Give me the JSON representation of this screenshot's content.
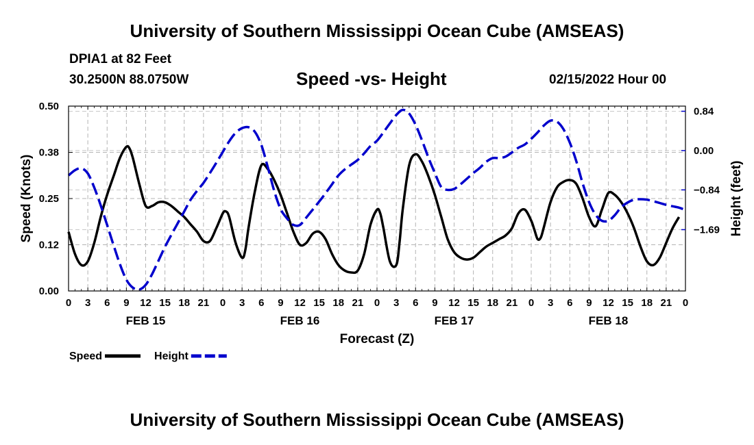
{
  "header": {
    "title": "University of Southern Mississippi Ocean Cube (AMSEAS)",
    "station": "DPIA1 at 82 Feet",
    "coords": "30.2500N  88.0750W",
    "subtitle": "Speed -vs- Height",
    "datetime": "02/15/2022 Hour 00"
  },
  "footer": {
    "title": "University of Southern Mississippi Ocean Cube (AMSEAS)"
  },
  "chart_data": {
    "type": "line",
    "title": "Speed -vs- Height",
    "xlabel": "Forecast (Z)",
    "ylabel": "Speed (Knots)",
    "y2label": "Height (feet)",
    "x_range": [
      0,
      96
    ],
    "ylim": [
      0,
      0.5
    ],
    "y2lim": [
      -3.0,
      0.95
    ],
    "grid": true,
    "x_ticks": [
      0,
      3,
      6,
      9,
      12,
      15,
      18,
      21,
      24,
      27,
      30,
      33,
      36,
      39,
      42,
      45,
      48,
      51,
      54,
      57,
      60,
      63,
      66,
      69,
      72,
      75,
      78,
      81,
      84,
      87,
      90,
      93,
      96
    ],
    "x_tick_labels": [
      "0",
      "3",
      "6",
      "9",
      "12",
      "15",
      "18",
      "21",
      "0",
      "3",
      "6",
      "9",
      "12",
      "15",
      "18",
      "21",
      "0",
      "3",
      "6",
      "9",
      "12",
      "15",
      "18",
      "21",
      "0",
      "3",
      "6",
      "9",
      "12",
      "15",
      "18",
      "21",
      "0"
    ],
    "date_labels": [
      {
        "x": 12,
        "label": "FEB 15"
      },
      {
        "x": 36,
        "label": "FEB 16"
      },
      {
        "x": 60,
        "label": "FEB 17"
      },
      {
        "x": 84,
        "label": "FEB 18"
      }
    ],
    "y_ticks": [
      0,
      0.125,
      0.25,
      0.375,
      0.5
    ],
    "y_tick_labels": [
      "0.00",
      "0.12",
      "0.25",
      "0.38",
      "0.50"
    ],
    "y2_ticks": [
      0.84,
      0.0,
      -0.84,
      -1.69
    ],
    "y2_tick_labels": [
      "0.84",
      "0.00",
      "−0.84",
      "−1.69"
    ],
    "series": [
      {
        "name": "Speed",
        "axis": "left",
        "color": "#000000",
        "dash": "solid",
        "points": [
          [
            0,
            0.16
          ],
          [
            1,
            0.1
          ],
          [
            2,
            0.07
          ],
          [
            3,
            0.08
          ],
          [
            4,
            0.13
          ],
          [
            5,
            0.2
          ],
          [
            6,
            0.26
          ],
          [
            7,
            0.31
          ],
          [
            8,
            0.36
          ],
          [
            9,
            0.39
          ],
          [
            9.5,
            0.385
          ],
          [
            10,
            0.36
          ],
          [
            11,
            0.29
          ],
          [
            12,
            0.23
          ],
          [
            13,
            0.23
          ],
          [
            14,
            0.24
          ],
          [
            15,
            0.24
          ],
          [
            16,
            0.23
          ],
          [
            17,
            0.215
          ],
          [
            18,
            0.2
          ],
          [
            19,
            0.18
          ],
          [
            20,
            0.16
          ],
          [
            21,
            0.135
          ],
          [
            22,
            0.135
          ],
          [
            23,
            0.17
          ],
          [
            24,
            0.21
          ],
          [
            24.5,
            0.215
          ],
          [
            25,
            0.2
          ],
          [
            26,
            0.13
          ],
          [
            27,
            0.09
          ],
          [
            27.5,
            0.11
          ],
          [
            28,
            0.17
          ],
          [
            29,
            0.27
          ],
          [
            30,
            0.34
          ],
          [
            31,
            0.33
          ],
          [
            32,
            0.3
          ],
          [
            33,
            0.26
          ],
          [
            34,
            0.21
          ],
          [
            35,
            0.16
          ],
          [
            36,
            0.125
          ],
          [
            37,
            0.13
          ],
          [
            38,
            0.155
          ],
          [
            39,
            0.16
          ],
          [
            40,
            0.14
          ],
          [
            41,
            0.1
          ],
          [
            42,
            0.07
          ],
          [
            43,
            0.055
          ],
          [
            44,
            0.05
          ],
          [
            45,
            0.055
          ],
          [
            46,
            0.1
          ],
          [
            47,
            0.18
          ],
          [
            48,
            0.22
          ],
          [
            48.5,
            0.21
          ],
          [
            49,
            0.17
          ],
          [
            50,
            0.08
          ],
          [
            51,
            0.07
          ],
          [
            51.5,
            0.13
          ],
          [
            52,
            0.22
          ],
          [
            53,
            0.34
          ],
          [
            54,
            0.37
          ],
          [
            55,
            0.35
          ],
          [
            56,
            0.31
          ],
          [
            57,
            0.26
          ],
          [
            58,
            0.2
          ],
          [
            59,
            0.14
          ],
          [
            60,
            0.105
          ],
          [
            61,
            0.09
          ],
          [
            62,
            0.085
          ],
          [
            63,
            0.09
          ],
          [
            64,
            0.105
          ],
          [
            65,
            0.12
          ],
          [
            66,
            0.13
          ],
          [
            67,
            0.14
          ],
          [
            68,
            0.15
          ],
          [
            69,
            0.17
          ],
          [
            70,
            0.21
          ],
          [
            71,
            0.22
          ],
          [
            72,
            0.19
          ],
          [
            72.5,
            0.165
          ],
          [
            73,
            0.14
          ],
          [
            73.5,
            0.145
          ],
          [
            74,
            0.175
          ],
          [
            75,
            0.24
          ],
          [
            76,
            0.28
          ],
          [
            77,
            0.295
          ],
          [
            78,
            0.3
          ],
          [
            79,
            0.29
          ],
          [
            80,
            0.25
          ],
          [
            81,
            0.2
          ],
          [
            82,
            0.175
          ],
          [
            83,
            0.22
          ],
          [
            84,
            0.265
          ],
          [
            85,
            0.26
          ],
          [
            86,
            0.24
          ],
          [
            87,
            0.21
          ],
          [
            88,
            0.17
          ],
          [
            89,
            0.12
          ],
          [
            90,
            0.08
          ],
          [
            91,
            0.07
          ],
          [
            92,
            0.09
          ],
          [
            93,
            0.13
          ],
          [
            94,
            0.17
          ],
          [
            95,
            0.2
          ]
        ]
      },
      {
        "name": "Height",
        "axis": "right",
        "color": "#0000cc",
        "dash": "dashed",
        "points": [
          [
            0,
            -0.53
          ],
          [
            1,
            -0.42
          ],
          [
            2,
            -0.38
          ],
          [
            3,
            -0.49
          ],
          [
            4,
            -0.79
          ],
          [
            5,
            -1.17
          ],
          [
            6,
            -1.59
          ],
          [
            7,
            -2.02
          ],
          [
            8,
            -2.43
          ],
          [
            9,
            -2.76
          ],
          [
            10,
            -2.93
          ],
          [
            11,
            -2.97
          ],
          [
            12,
            -2.87
          ],
          [
            13,
            -2.64
          ],
          [
            14,
            -2.35
          ],
          [
            15,
            -2.06
          ],
          [
            16,
            -1.8
          ],
          [
            17,
            -1.55
          ],
          [
            18,
            -1.3
          ],
          [
            19,
            -1.05
          ],
          [
            20,
            -0.86
          ],
          [
            21,
            -0.69
          ],
          [
            22,
            -0.48
          ],
          [
            23,
            -0.26
          ],
          [
            24,
            -0.03
          ],
          [
            25,
            0.2
          ],
          [
            26,
            0.38
          ],
          [
            27,
            0.48
          ],
          [
            28,
            0.5
          ],
          [
            29,
            0.4
          ],
          [
            30,
            0.12
          ],
          [
            31,
            -0.35
          ],
          [
            32,
            -0.86
          ],
          [
            33,
            -1.25
          ],
          [
            34,
            -1.45
          ],
          [
            35,
            -1.59
          ],
          [
            36,
            -1.59
          ],
          [
            37,
            -1.43
          ],
          [
            38,
            -1.26
          ],
          [
            39,
            -1.09
          ],
          [
            40,
            -0.91
          ],
          [
            41,
            -0.72
          ],
          [
            42,
            -0.53
          ],
          [
            43,
            -0.4
          ],
          [
            44,
            -0.3
          ],
          [
            45,
            -0.2
          ],
          [
            46,
            -0.06
          ],
          [
            47,
            0.1
          ],
          [
            48,
            0.21
          ],
          [
            49,
            0.39
          ],
          [
            50,
            0.58
          ],
          [
            51,
            0.76
          ],
          [
            52,
            0.87
          ],
          [
            53,
            0.79
          ],
          [
            54,
            0.55
          ],
          [
            55,
            0.22
          ],
          [
            56,
            -0.15
          ],
          [
            57,
            -0.48
          ],
          [
            58,
            -0.78
          ],
          [
            59,
            -0.84
          ],
          [
            60,
            -0.82
          ],
          [
            61,
            -0.72
          ],
          [
            62,
            -0.6
          ],
          [
            63,
            -0.48
          ],
          [
            64,
            -0.37
          ],
          [
            65,
            -0.24
          ],
          [
            66,
            -0.16
          ],
          [
            67,
            -0.16
          ],
          [
            68,
            -0.13
          ],
          [
            69,
            -0.04
          ],
          [
            70,
            0.06
          ],
          [
            71,
            0.13
          ],
          [
            72,
            0.25
          ],
          [
            73,
            0.39
          ],
          [
            74,
            0.54
          ],
          [
            75,
            0.64
          ],
          [
            76,
            0.62
          ],
          [
            77,
            0.46
          ],
          [
            78,
            0.17
          ],
          [
            79,
            -0.22
          ],
          [
            80,
            -0.7
          ],
          [
            81,
            -1.1
          ],
          [
            82,
            -1.37
          ],
          [
            83,
            -1.5
          ],
          [
            84,
            -1.5
          ],
          [
            85,
            -1.38
          ],
          [
            86,
            -1.21
          ],
          [
            87,
            -1.11
          ],
          [
            88,
            -1.05
          ],
          [
            89,
            -1.04
          ],
          [
            90,
            -1.05
          ],
          [
            91,
            -1.08
          ],
          [
            92,
            -1.12
          ],
          [
            93,
            -1.16
          ],
          [
            94,
            -1.19
          ],
          [
            95,
            -1.22
          ],
          [
            96,
            -1.27
          ]
        ]
      }
    ],
    "legend": [
      {
        "label": "Speed",
        "color": "#000000",
        "dash": "solid"
      },
      {
        "label": "Height",
        "color": "#0000cc",
        "dash": "dashed"
      }
    ]
  }
}
